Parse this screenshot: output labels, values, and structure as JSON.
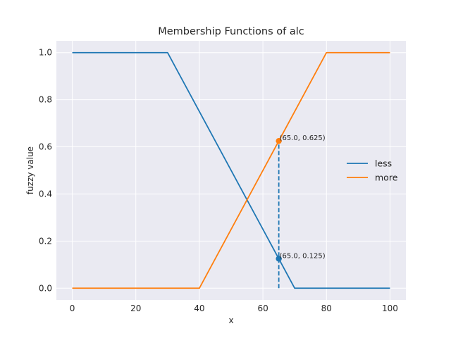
{
  "chart_data": {
    "type": "line",
    "title": "Membership Functions of alc",
    "xlabel": "x",
    "ylabel": "fuzzy value",
    "xlim": [
      -5,
      105
    ],
    "ylim": [
      -0.05,
      1.05
    ],
    "xticks": [
      0,
      20,
      40,
      60,
      80,
      100
    ],
    "xtick_labels": [
      "0",
      "20",
      "40",
      "60",
      "80",
      "100"
    ],
    "yticks": [
      0.0,
      0.2,
      0.4,
      0.6,
      0.8,
      1.0
    ],
    "ytick_labels": [
      "0.0",
      "0.2",
      "0.4",
      "0.6",
      "0.8",
      "1.0"
    ],
    "grid": true,
    "legend": "center-right",
    "series": [
      {
        "name": "less",
        "color": "#1f77b4",
        "x": [
          0,
          30,
          70,
          100
        ],
        "y": [
          1.0,
          1.0,
          0.0,
          0.0
        ]
      },
      {
        "name": "more",
        "color": "#ff7f0e",
        "x": [
          0,
          40,
          80,
          100
        ],
        "y": [
          0.0,
          0.0,
          1.0,
          1.0
        ]
      }
    ],
    "marker_line": {
      "x": 65,
      "y_from": 0.0,
      "y_to": 0.625,
      "style": "dashed",
      "color": "#1f77b4"
    },
    "points": [
      {
        "x": 65.0,
        "y": 0.625,
        "label": "(65.0, 0.625)",
        "color": "#ff7f0e"
      },
      {
        "x": 65.0,
        "y": 0.125,
        "label": "(65.0, 0.125)",
        "color": "#1f77b4"
      }
    ]
  }
}
